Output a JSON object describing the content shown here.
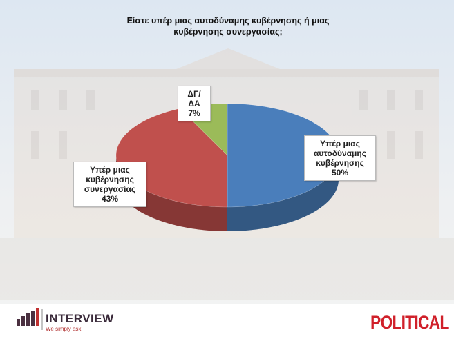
{
  "chart_data": {
    "type": "pie3d",
    "title": "Είστε υπέρ μιας αυτοδύναμης κυβέρνησης ή μιας κυβέρνησης συνεργασίας;",
    "categories": [
      "Υπέρ μιας αυτοδύναμης κυβέρνησης",
      "Υπέρ μιας κυβέρνησης συνεργασίας",
      "ΔΓ/ΔΑ"
    ],
    "values": [
      50,
      43,
      7
    ],
    "value_labels": [
      "50%",
      "43%",
      "7%"
    ],
    "colors": [
      "#4a7ebb",
      "#c0504d",
      "#9bbb59"
    ]
  },
  "logos": {
    "brand": "INTERVIEW",
    "tagline": "We simply ask!",
    "outlet": "POLITICAL"
  }
}
